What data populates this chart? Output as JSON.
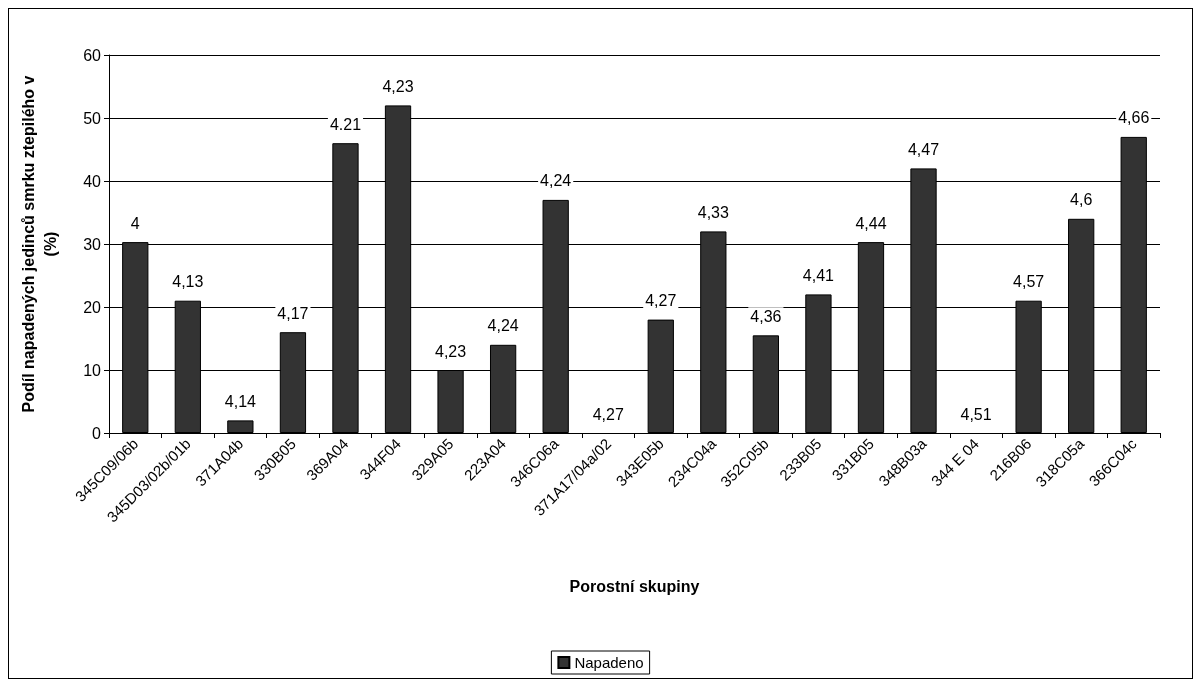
{
  "chart_data": {
    "type": "bar",
    "xlabel": "Porostní skupiny",
    "ylabel": "Podíl napadených jedinců smrku ztepilého v (%)",
    "categories": [
      "345C09/06b",
      "345D03/02b/01b",
      "371A04b",
      "330B05",
      "369A04",
      "344F04",
      "329A05",
      "223A04",
      "346C06a",
      "371A17/04a/02",
      "343E05b",
      "234C04a",
      "352C05b",
      "233B05",
      "331B05",
      "348B03a",
      "344 E 04",
      "216B06",
      "318C05a",
      "366C04c"
    ],
    "series": [
      {
        "name": "Napadeno",
        "color": "#333333",
        "values": [
          30.3,
          21,
          2,
          16,
          46,
          52,
          10,
          14,
          37,
          0,
          18,
          32,
          15.5,
          22,
          30.3,
          42,
          0,
          21,
          34,
          47
        ]
      }
    ],
    "annotations": [
      {
        "text": "4",
        "x": "345C09/06b",
        "y": 30.3
      },
      {
        "text": "4,13",
        "x": "345D03/02b/01b",
        "y": 21
      },
      {
        "text": "4,14",
        "x": "371A04b",
        "y": 2
      },
      {
        "text": "4,17",
        "x": "330B05",
        "y": 16
      },
      {
        "text": "4.21",
        "x": "369A04",
        "y": 46
      },
      {
        "text": "4,23",
        "x": "344F04",
        "y": 52
      },
      {
        "text": "4,23",
        "x": "329A05",
        "y": 10
      },
      {
        "text": "4,24",
        "x": "223A04",
        "y": 14
      },
      {
        "text": "4,24",
        "x": "346C06a",
        "y": 37
      },
      {
        "text": "4,27",
        "x": "371A17/04a/02",
        "y": 0
      },
      {
        "text": "4,27",
        "x": "343E05b",
        "y": 18
      },
      {
        "text": "4,33",
        "x": "234C04a",
        "y": 32
      },
      {
        "text": "4,36",
        "x": "352C05b",
        "y": 15.5
      },
      {
        "text": "4,41",
        "x": "233B05",
        "y": 22
      },
      {
        "text": "4,44",
        "x": "331B05",
        "y": 30.3
      },
      {
        "text": "4,47",
        "x": "348B03a",
        "y": 42
      },
      {
        "text": "4,51",
        "x": "344 E 04",
        "y": 0
      },
      {
        "text": "4,57",
        "x": "216B06",
        "y": 21
      },
      {
        "text": "4,6",
        "x": "318C05a",
        "y": 34
      },
      {
        "text": "4,66",
        "x": "366C04c",
        "y": 47
      }
    ],
    "ylim": [
      0,
      60
    ],
    "yticks": [
      0,
      10,
      20,
      30,
      40,
      50,
      60
    ],
    "grid": "y",
    "legend": "bottom"
  }
}
